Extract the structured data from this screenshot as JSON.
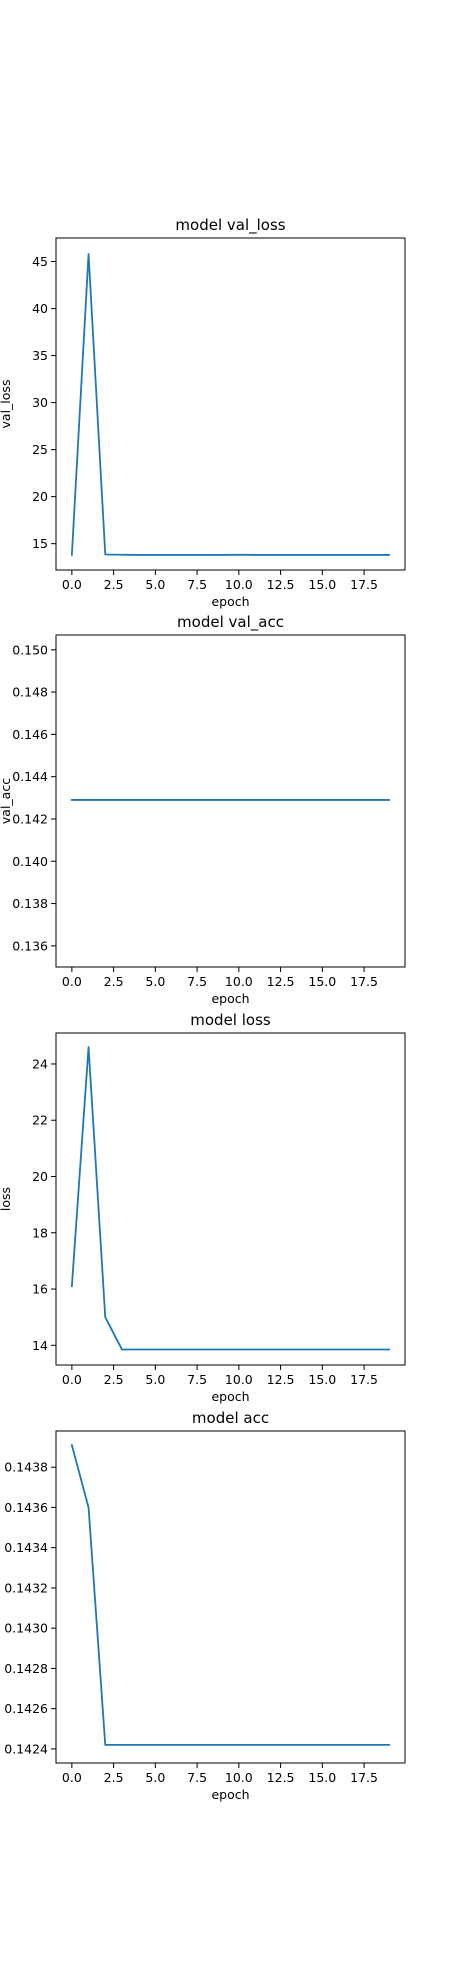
{
  "colors": {
    "series": "#1f77b4",
    "axes": "#000000",
    "background": "#ffffff"
  },
  "chart_data": [
    {
      "type": "line",
      "title": "model val_loss",
      "xlabel": "epoch",
      "ylabel": "val_loss",
      "grid": false,
      "xlim": [
        -0.95,
        19.95
      ],
      "ylim": [
        12.2,
        47.5
      ],
      "xticks": [
        0,
        2.5,
        5,
        7.5,
        10,
        12.5,
        15,
        17.5
      ],
      "xtick_labels": [
        "0.0",
        "2.5",
        "5.0",
        "7.5",
        "10.0",
        "12.5",
        "15.0",
        "17.5"
      ],
      "yticks": [
        15,
        20,
        25,
        30,
        35,
        40,
        45
      ],
      "ytick_labels": [
        "15",
        "20",
        "25",
        "30",
        "35",
        "40",
        "45"
      ],
      "x": [
        0,
        1,
        2,
        3,
        4,
        5,
        6,
        7,
        8,
        9,
        10,
        11,
        12,
        13,
        14,
        15,
        16,
        17,
        18,
        19
      ],
      "series": [
        {
          "values": [
            13.8,
            45.8,
            13.85,
            13.82,
            13.8,
            13.8,
            13.8,
            13.8,
            13.8,
            13.8,
            13.82,
            13.8,
            13.8,
            13.8,
            13.8,
            13.8,
            13.8,
            13.8,
            13.8,
            13.8
          ]
        }
      ]
    },
    {
      "type": "line",
      "title": "model val_acc",
      "xlabel": "epoch",
      "ylabel": "val_acc",
      "grid": false,
      "xlim": [
        -0.95,
        19.95
      ],
      "ylim": [
        0.135,
        0.1507
      ],
      "xticks": [
        0,
        2.5,
        5,
        7.5,
        10,
        12.5,
        15,
        17.5
      ],
      "xtick_labels": [
        "0.0",
        "2.5",
        "5.0",
        "7.5",
        "10.0",
        "12.5",
        "15.0",
        "17.5"
      ],
      "yticks": [
        0.136,
        0.138,
        0.14,
        0.142,
        0.144,
        0.146,
        0.148,
        0.15
      ],
      "ytick_labels": [
        "0.136",
        "0.138",
        "0.140",
        "0.142",
        "0.144",
        "0.146",
        "0.148",
        "0.150"
      ],
      "x": [
        0,
        1,
        2,
        3,
        4,
        5,
        6,
        7,
        8,
        9,
        10,
        11,
        12,
        13,
        14,
        15,
        16,
        17,
        18,
        19
      ],
      "series": [
        {
          "values": [
            0.1429,
            0.1429,
            0.1429,
            0.1429,
            0.1429,
            0.1429,
            0.1429,
            0.1429,
            0.1429,
            0.1429,
            0.1429,
            0.1429,
            0.1429,
            0.1429,
            0.1429,
            0.1429,
            0.1429,
            0.1429,
            0.1429,
            0.1429
          ]
        }
      ]
    },
    {
      "type": "line",
      "title": "model loss",
      "xlabel": "epoch",
      "ylabel": "loss",
      "grid": false,
      "xlim": [
        -0.95,
        19.95
      ],
      "ylim": [
        13.3,
        25.1
      ],
      "xticks": [
        0,
        2.5,
        5,
        7.5,
        10,
        12.5,
        15,
        17.5
      ],
      "xtick_labels": [
        "0.0",
        "2.5",
        "5.0",
        "7.5",
        "10.0",
        "12.5",
        "15.0",
        "17.5"
      ],
      "yticks": [
        14,
        16,
        18,
        20,
        22,
        24
      ],
      "ytick_labels": [
        "14",
        "16",
        "18",
        "20",
        "22",
        "24"
      ],
      "x": [
        0,
        1,
        2,
        3,
        4,
        5,
        6,
        7,
        8,
        9,
        10,
        11,
        12,
        13,
        14,
        15,
        16,
        17,
        18,
        19
      ],
      "series": [
        {
          "values": [
            16.1,
            24.6,
            15.0,
            13.85,
            13.85,
            13.85,
            13.85,
            13.85,
            13.85,
            13.85,
            13.85,
            13.85,
            13.85,
            13.85,
            13.85,
            13.85,
            13.85,
            13.85,
            13.85,
            13.85
          ]
        }
      ]
    },
    {
      "type": "line",
      "title": "model acc",
      "xlabel": "epoch",
      "ylabel": "",
      "grid": false,
      "xlim": [
        -0.95,
        19.95
      ],
      "ylim": [
        0.14233,
        0.14398
      ],
      "xticks": [
        0,
        2.5,
        5,
        7.5,
        10,
        12.5,
        15,
        17.5
      ],
      "xtick_labels": [
        "0.0",
        "2.5",
        "5.0",
        "7.5",
        "10.0",
        "12.5",
        "15.0",
        "17.5"
      ],
      "yticks": [
        0.1424,
        0.1426,
        0.1428,
        0.143,
        0.1432,
        0.1434,
        0.1436,
        0.1438
      ],
      "ytick_labels": [
        "0.1424",
        "0.1426",
        "0.1428",
        "0.1430",
        "0.1432",
        "0.1434",
        "0.1436",
        "0.1438"
      ],
      "x": [
        0,
        1,
        2,
        3,
        4,
        5,
        6,
        7,
        8,
        9,
        10,
        11,
        12,
        13,
        14,
        15,
        16,
        17,
        18,
        19
      ],
      "series": [
        {
          "values": [
            0.14391,
            0.1436,
            0.14242,
            0.14242,
            0.14242,
            0.14242,
            0.14242,
            0.14242,
            0.14242,
            0.14242,
            0.14242,
            0.14242,
            0.14242,
            0.14242,
            0.14242,
            0.14242,
            0.14242,
            0.14242,
            0.14242,
            0.14242
          ]
        }
      ]
    }
  ]
}
